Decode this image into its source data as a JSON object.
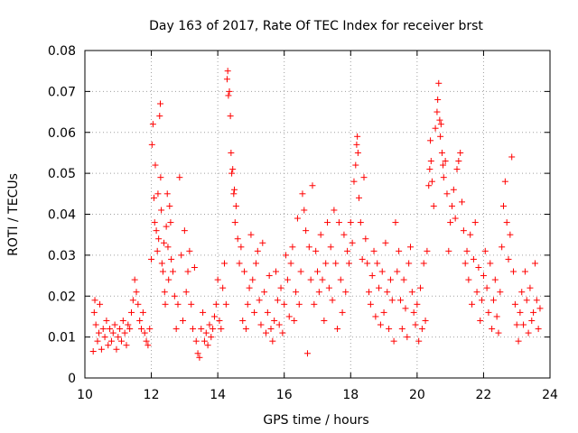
{
  "chart_data": {
    "type": "scatter",
    "title": "Day 163 of 2017, Rate Of TEC Index for receiver brst",
    "xlabel": "GPS time / hours",
    "ylabel": "ROTI / TECUs",
    "xlim": [
      10,
      24
    ],
    "ylim": [
      0,
      0.08
    ],
    "x_ticks": [
      "10",
      "12",
      "14",
      "16",
      "18",
      "20",
      "22",
      "24"
    ],
    "y_ticks": [
      "0",
      "0.01",
      "0.02",
      "0.03",
      "0.04",
      "0.05",
      "0.06",
      "0.07",
      "0.08"
    ],
    "grid": true,
    "marker": "+",
    "color": "#ff0000",
    "series": [
      {
        "points": [
          [
            10.25,
            0.0065
          ],
          [
            10.28,
            0.016
          ],
          [
            10.3,
            0.019
          ],
          [
            10.33,
            0.013
          ],
          [
            10.38,
            0.009
          ],
          [
            10.42,
            0.011
          ],
          [
            10.45,
            0.018
          ],
          [
            10.5,
            0.007
          ],
          [
            10.55,
            0.012
          ],
          [
            10.6,
            0.01
          ],
          [
            10.65,
            0.014
          ],
          [
            10.7,
            0.008
          ],
          [
            10.75,
            0.012
          ],
          [
            10.8,
            0.009
          ],
          [
            10.85,
            0.011
          ],
          [
            10.9,
            0.013
          ],
          [
            10.95,
            0.007
          ],
          [
            11.0,
            0.01
          ],
          [
            11.05,
            0.012
          ],
          [
            11.1,
            0.009
          ],
          [
            11.15,
            0.014
          ],
          [
            11.2,
            0.011
          ],
          [
            11.25,
            0.008
          ],
          [
            11.3,
            0.013
          ],
          [
            11.35,
            0.012
          ],
          [
            11.4,
            0.016
          ],
          [
            11.45,
            0.019
          ],
          [
            11.5,
            0.024
          ],
          [
            11.55,
            0.021
          ],
          [
            11.6,
            0.018
          ],
          [
            11.65,
            0.014
          ],
          [
            11.7,
            0.012
          ],
          [
            11.75,
            0.016
          ],
          [
            11.8,
            0.011
          ],
          [
            11.85,
            0.009
          ],
          [
            11.9,
            0.008
          ],
          [
            11.95,
            0.012
          ],
          [
            12.0,
            0.029
          ],
          [
            12.02,
            0.057
          ],
          [
            12.05,
            0.062
          ],
          [
            12.08,
            0.044
          ],
          [
            12.1,
            0.038
          ],
          [
            12.12,
            0.052
          ],
          [
            12.15,
            0.036
          ],
          [
            12.18,
            0.031
          ],
          [
            12.2,
            0.045
          ],
          [
            12.22,
            0.034
          ],
          [
            12.25,
            0.064
          ],
          [
            12.27,
            0.067
          ],
          [
            12.28,
            0.049
          ],
          [
            12.3,
            0.041
          ],
          [
            12.32,
            0.028
          ],
          [
            12.35,
            0.026
          ],
          [
            12.38,
            0.033
          ],
          [
            12.4,
            0.021
          ],
          [
            12.42,
            0.018
          ],
          [
            12.45,
            0.037
          ],
          [
            12.48,
            0.045
          ],
          [
            12.5,
            0.032
          ],
          [
            12.52,
            0.024
          ],
          [
            12.55,
            0.042
          ],
          [
            12.58,
            0.038
          ],
          [
            12.6,
            0.029
          ],
          [
            12.65,
            0.026
          ],
          [
            12.7,
            0.02
          ],
          [
            12.75,
            0.012
          ],
          [
            12.8,
            0.018
          ],
          [
            12.85,
            0.049
          ],
          [
            12.9,
            0.03
          ],
          [
            12.95,
            0.014
          ],
          [
            13.0,
            0.036
          ],
          [
            13.05,
            0.021
          ],
          [
            13.1,
            0.026
          ],
          [
            13.15,
            0.031
          ],
          [
            13.2,
            0.018
          ],
          [
            13.25,
            0.012
          ],
          [
            13.3,
            0.027
          ],
          [
            13.35,
            0.009
          ],
          [
            13.4,
            0.006
          ],
          [
            13.45,
            0.005
          ],
          [
            13.5,
            0.012
          ],
          [
            13.55,
            0.016
          ],
          [
            13.6,
            0.009
          ],
          [
            13.65,
            0.011
          ],
          [
            13.7,
            0.008
          ],
          [
            13.75,
            0.013
          ],
          [
            13.8,
            0.01
          ],
          [
            13.85,
            0.012
          ],
          [
            13.9,
            0.015
          ],
          [
            13.95,
            0.018
          ],
          [
            14.0,
            0.024
          ],
          [
            14.05,
            0.014
          ],
          [
            14.1,
            0.012
          ],
          [
            14.15,
            0.022
          ],
          [
            14.2,
            0.028
          ],
          [
            14.25,
            0.018
          ],
          [
            14.28,
            0.073
          ],
          [
            14.3,
            0.075
          ],
          [
            14.32,
            0.069
          ],
          [
            14.35,
            0.07
          ],
          [
            14.38,
            0.064
          ],
          [
            14.4,
            0.055
          ],
          [
            14.42,
            0.05
          ],
          [
            14.45,
            0.051
          ],
          [
            14.48,
            0.045
          ],
          [
            14.5,
            0.046
          ],
          [
            14.52,
            0.038
          ],
          [
            14.55,
            0.042
          ],
          [
            14.6,
            0.034
          ],
          [
            14.65,
            0.028
          ],
          [
            14.7,
            0.032
          ],
          [
            14.75,
            0.014
          ],
          [
            14.8,
            0.026
          ],
          [
            14.85,
            0.012
          ],
          [
            14.9,
            0.018
          ],
          [
            14.95,
            0.022
          ],
          [
            15.0,
            0.035
          ],
          [
            15.05,
            0.024
          ],
          [
            15.1,
            0.016
          ],
          [
            15.15,
            0.028
          ],
          [
            15.2,
            0.031
          ],
          [
            15.25,
            0.019
          ],
          [
            15.3,
            0.013
          ],
          [
            15.35,
            0.033
          ],
          [
            15.4,
            0.021
          ],
          [
            15.45,
            0.011
          ],
          [
            15.5,
            0.016
          ],
          [
            15.55,
            0.025
          ],
          [
            15.6,
            0.012
          ],
          [
            15.65,
            0.009
          ],
          [
            15.7,
            0.014
          ],
          [
            15.75,
            0.026
          ],
          [
            15.8,
            0.019
          ],
          [
            15.85,
            0.013
          ],
          [
            15.9,
            0.022
          ],
          [
            15.95,
            0.011
          ],
          [
            16.0,
            0.018
          ],
          [
            16.05,
            0.03
          ],
          [
            16.1,
            0.024
          ],
          [
            16.15,
            0.015
          ],
          [
            16.2,
            0.028
          ],
          [
            16.25,
            0.032
          ],
          [
            16.3,
            0.014
          ],
          [
            16.35,
            0.021
          ],
          [
            16.4,
            0.039
          ],
          [
            16.45,
            0.018
          ],
          [
            16.5,
            0.026
          ],
          [
            16.55,
            0.045
          ],
          [
            16.6,
            0.041
          ],
          [
            16.65,
            0.036
          ],
          [
            16.7,
            0.006
          ],
          [
            16.75,
            0.032
          ],
          [
            16.8,
            0.024
          ],
          [
            16.85,
            0.047
          ],
          [
            16.9,
            0.018
          ],
          [
            16.95,
            0.031
          ],
          [
            17.0,
            0.026
          ],
          [
            17.05,
            0.021
          ],
          [
            17.1,
            0.035
          ],
          [
            17.15,
            0.024
          ],
          [
            17.2,
            0.014
          ],
          [
            17.25,
            0.028
          ],
          [
            17.3,
            0.038
          ],
          [
            17.35,
            0.022
          ],
          [
            17.4,
            0.032
          ],
          [
            17.45,
            0.019
          ],
          [
            17.5,
            0.041
          ],
          [
            17.55,
            0.028
          ],
          [
            17.6,
            0.012
          ],
          [
            17.65,
            0.038
          ],
          [
            17.7,
            0.024
          ],
          [
            17.75,
            0.016
          ],
          [
            17.8,
            0.035
          ],
          [
            17.85,
            0.021
          ],
          [
            17.9,
            0.031
          ],
          [
            17.95,
            0.028
          ],
          [
            18.0,
            0.038
          ],
          [
            18.05,
            0.033
          ],
          [
            18.1,
            0.048
          ],
          [
            18.15,
            0.052
          ],
          [
            18.18,
            0.057
          ],
          [
            18.2,
            0.059
          ],
          [
            18.22,
            0.055
          ],
          [
            18.25,
            0.044
          ],
          [
            18.3,
            0.038
          ],
          [
            18.35,
            0.029
          ],
          [
            18.4,
            0.049
          ],
          [
            18.45,
            0.034
          ],
          [
            18.5,
            0.028
          ],
          [
            18.55,
            0.021
          ],
          [
            18.6,
            0.018
          ],
          [
            18.65,
            0.025
          ],
          [
            18.7,
            0.031
          ],
          [
            18.75,
            0.015
          ],
          [
            18.8,
            0.028
          ],
          [
            18.85,
            0.022
          ],
          [
            18.9,
            0.013
          ],
          [
            18.95,
            0.026
          ],
          [
            19.0,
            0.016
          ],
          [
            19.05,
            0.033
          ],
          [
            19.1,
            0.021
          ],
          [
            19.15,
            0.012
          ],
          [
            19.2,
            0.024
          ],
          [
            19.25,
            0.019
          ],
          [
            19.3,
            0.009
          ],
          [
            19.35,
            0.038
          ],
          [
            19.4,
            0.026
          ],
          [
            19.45,
            0.031
          ],
          [
            19.5,
            0.019
          ],
          [
            19.55,
            0.012
          ],
          [
            19.6,
            0.024
          ],
          [
            19.65,
            0.017
          ],
          [
            19.7,
            0.01
          ],
          [
            19.75,
            0.028
          ],
          [
            19.8,
            0.032
          ],
          [
            19.85,
            0.021
          ],
          [
            19.9,
            0.016
          ],
          [
            19.95,
            0.013
          ],
          [
            20.0,
            0.018
          ],
          [
            20.05,
            0.009
          ],
          [
            20.1,
            0.022
          ],
          [
            20.15,
            0.012
          ],
          [
            20.2,
            0.028
          ],
          [
            20.25,
            0.014
          ],
          [
            20.3,
            0.031
          ],
          [
            20.35,
            0.047
          ],
          [
            20.38,
            0.051
          ],
          [
            20.4,
            0.058
          ],
          [
            20.42,
            0.053
          ],
          [
            20.45,
            0.048
          ],
          [
            20.5,
            0.042
          ],
          [
            20.55,
            0.061
          ],
          [
            20.6,
            0.065
          ],
          [
            20.62,
            0.068
          ],
          [
            20.65,
            0.072
          ],
          [
            20.68,
            0.063
          ],
          [
            20.7,
            0.059
          ],
          [
            20.72,
            0.062
          ],
          [
            20.75,
            0.055
          ],
          [
            20.78,
            0.052
          ],
          [
            20.8,
            0.049
          ],
          [
            20.85,
            0.053
          ],
          [
            20.9,
            0.045
          ],
          [
            20.95,
            0.031
          ],
          [
            21.0,
            0.038
          ],
          [
            21.05,
            0.042
          ],
          [
            21.1,
            0.046
          ],
          [
            21.15,
            0.039
          ],
          [
            21.2,
            0.051
          ],
          [
            21.25,
            0.053
          ],
          [
            21.3,
            0.055
          ],
          [
            21.35,
            0.043
          ],
          [
            21.4,
            0.036
          ],
          [
            21.45,
            0.028
          ],
          [
            21.5,
            0.031
          ],
          [
            21.55,
            0.024
          ],
          [
            21.6,
            0.035
          ],
          [
            21.65,
            0.018
          ],
          [
            21.7,
            0.029
          ],
          [
            21.75,
            0.038
          ],
          [
            21.8,
            0.021
          ],
          [
            21.85,
            0.027
          ],
          [
            21.9,
            0.014
          ],
          [
            21.95,
            0.019
          ],
          [
            22.0,
            0.025
          ],
          [
            22.05,
            0.031
          ],
          [
            22.1,
            0.022
          ],
          [
            22.15,
            0.016
          ],
          [
            22.2,
            0.028
          ],
          [
            22.25,
            0.012
          ],
          [
            22.3,
            0.019
          ],
          [
            22.35,
            0.024
          ],
          [
            22.4,
            0.015
          ],
          [
            22.45,
            0.011
          ],
          [
            22.5,
            0.021
          ],
          [
            22.55,
            0.032
          ],
          [
            22.6,
            0.042
          ],
          [
            22.65,
            0.048
          ],
          [
            22.7,
            0.038
          ],
          [
            22.75,
            0.029
          ],
          [
            22.8,
            0.035
          ],
          [
            22.85,
            0.054
          ],
          [
            22.9,
            0.026
          ],
          [
            22.95,
            0.018
          ],
          [
            23.0,
            0.013
          ],
          [
            23.05,
            0.009
          ],
          [
            23.1,
            0.016
          ],
          [
            23.15,
            0.021
          ],
          [
            23.2,
            0.013
          ],
          [
            23.25,
            0.026
          ],
          [
            23.3,
            0.019
          ],
          [
            23.35,
            0.011
          ],
          [
            23.4,
            0.022
          ],
          [
            23.45,
            0.014
          ],
          [
            23.5,
            0.016
          ],
          [
            23.55,
            0.028
          ],
          [
            23.6,
            0.019
          ],
          [
            23.65,
            0.012
          ],
          [
            23.7,
            0.017
          ]
        ]
      }
    ]
  }
}
